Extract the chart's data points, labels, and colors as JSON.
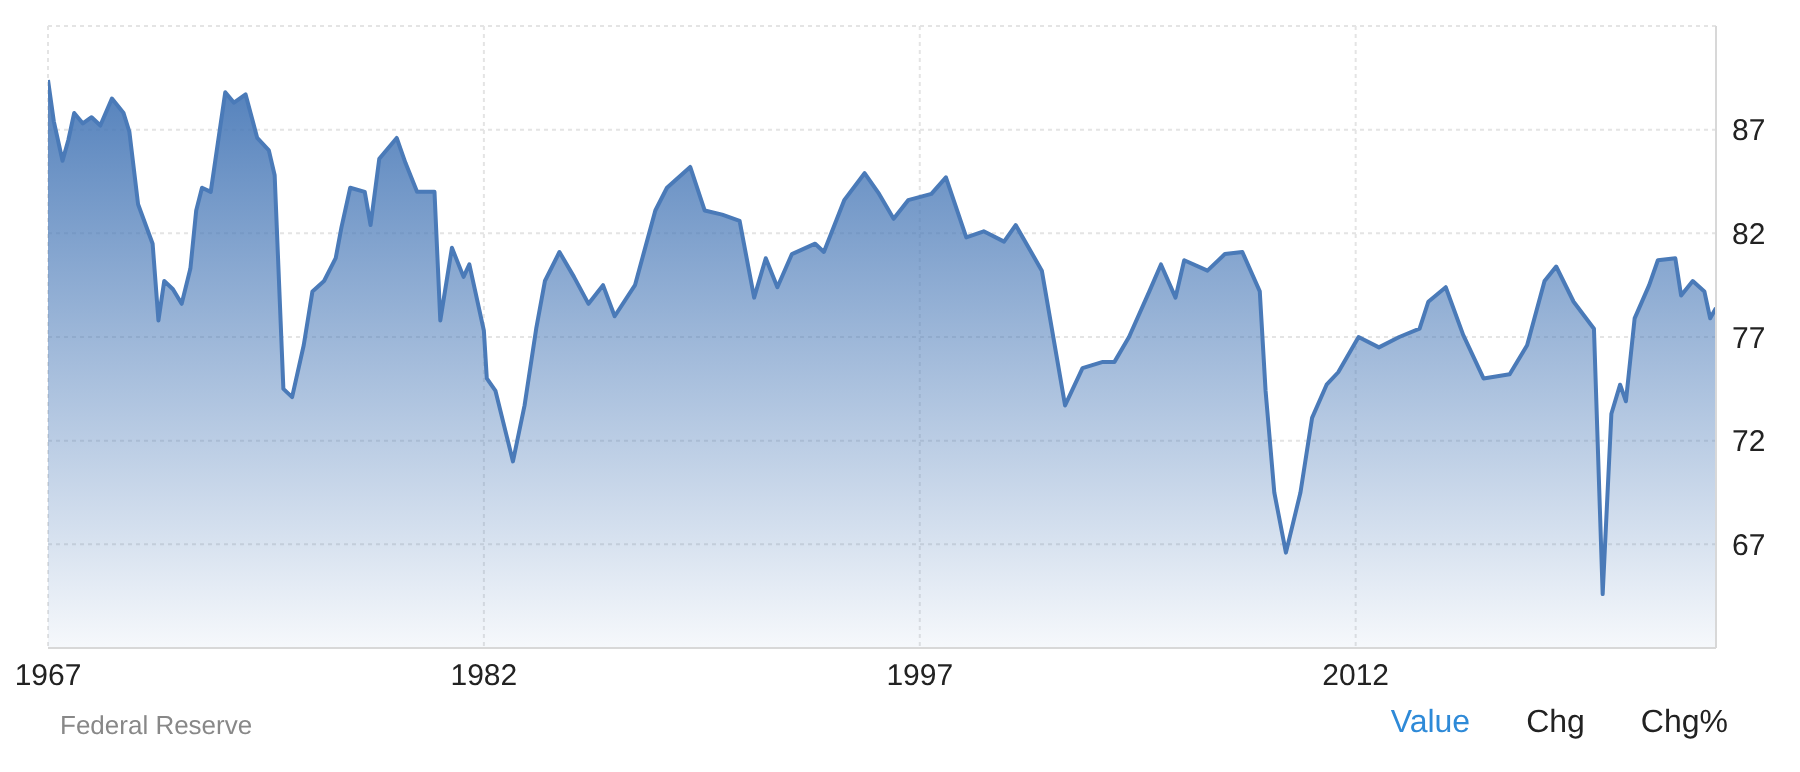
{
  "chart_data": {
    "type": "area",
    "x": [
      1967.0,
      1967.2,
      1967.5,
      1967.7,
      1967.9,
      1968.2,
      1968.5,
      1968.8,
      1969.2,
      1969.6,
      1969.8,
      1970.1,
      1970.6,
      1970.8,
      1971.0,
      1971.3,
      1971.6,
      1971.9,
      1972.1,
      1972.3,
      1972.6,
      1973.1,
      1973.4,
      1973.8,
      1974.2,
      1974.6,
      1974.8,
      1975.1,
      1975.4,
      1975.8,
      1976.1,
      1976.5,
      1976.9,
      1977.1,
      1977.4,
      1977.9,
      1978.1,
      1978.4,
      1979.0,
      1979.3,
      1979.7,
      1980.3,
      1980.5,
      1980.9,
      1981.3,
      1981.5,
      1982.0,
      1982.1,
      1982.4,
      1983.0,
      1983.4,
      1983.8,
      1984.1,
      1984.6,
      1985.1,
      1985.6,
      1986.1,
      1986.5,
      1987.2,
      1987.9,
      1988.3,
      1989.1,
      1989.6,
      1990.2,
      1990.8,
      1991.3,
      1991.7,
      1992.1,
      1992.6,
      1993.4,
      1993.7,
      1994.4,
      1995.1,
      1995.6,
      1996.1,
      1996.6,
      1997.4,
      1997.9,
      1998.6,
      1999.2,
      1999.9,
      2000.3,
      2001.2,
      2002.0,
      2002.6,
      2003.3,
      2003.7,
      2004.2,
      2004.9,
      2005.3,
      2005.8,
      2006.1,
      2006.9,
      2007.5,
      2008.1,
      2008.7,
      2008.9,
      2009.2,
      2009.6,
      2010.1,
      2010.5,
      2011.0,
      2011.4,
      2012.1,
      2012.8,
      2013.5,
      2014.2,
      2014.5,
      2015.1,
      2015.7,
      2016.4,
      2017.3,
      2017.9,
      2018.5,
      2018.9,
      2019.5,
      2020.2,
      2020.5,
      2020.8,
      2021.1,
      2021.3,
      2021.6,
      2022.1,
      2022.4,
      2023.0,
      2023.2,
      2023.6,
      2024.0,
      2024.2,
      2024.4
    ],
    "series": [
      {
        "color": "#4a7ab8",
        "values": [
          89.4,
          87.4,
          85.5,
          86.5,
          87.8,
          87.3,
          87.6,
          87.2,
          88.5,
          87.8,
          86.9,
          83.4,
          81.5,
          77.8,
          79.7,
          79.3,
          78.6,
          80.3,
          83.1,
          84.2,
          84.0,
          88.8,
          88.3,
          88.7,
          86.6,
          86.0,
          84.8,
          74.5,
          74.1,
          76.6,
          79.2,
          79.7,
          80.8,
          82.3,
          84.2,
          84.0,
          82.4,
          85.6,
          86.6,
          85.4,
          84.0,
          84.0,
          77.8,
          81.3,
          79.9,
          80.5,
          77.3,
          75.0,
          74.4,
          71.0,
          73.7,
          77.4,
          79.7,
          81.1,
          79.9,
          78.6,
          79.5,
          78.0,
          79.5,
          83.1,
          84.2,
          85.2,
          83.1,
          82.9,
          82.6,
          78.9,
          80.8,
          79.4,
          81.0,
          81.5,
          81.1,
          83.6,
          84.9,
          83.9,
          82.7,
          83.6,
          83.9,
          84.7,
          81.8,
          82.1,
          81.6,
          82.4,
          80.2,
          73.7,
          75.5,
          75.8,
          75.8,
          77.0,
          79.2,
          80.5,
          78.9,
          80.7,
          80.2,
          81.0,
          81.1,
          79.2,
          74.4,
          69.5,
          66.6,
          69.5,
          73.1,
          74.7,
          75.3,
          77.0,
          76.5,
          77.0,
          77.4,
          78.7,
          79.4,
          77.1,
          75.0,
          75.2,
          76.6,
          79.7,
          80.4,
          78.7,
          77.4,
          64.6,
          73.3,
          74.7,
          73.9,
          77.9,
          79.5,
          80.7,
          80.8,
          79.0,
          79.7,
          79.2,
          77.9,
          78.4
        ]
      }
    ],
    "xlim": [
      1967,
      2024.4
    ],
    "xticks": [
      1967,
      1982,
      1997,
      2012
    ],
    "ylim": [
      62,
      92
    ],
    "yticks": [
      67,
      72,
      77,
      82,
      87
    ],
    "grid": true,
    "annotations": [
      "Federal Reserve",
      "Value",
      "Chg",
      "Chg%"
    ]
  }
}
